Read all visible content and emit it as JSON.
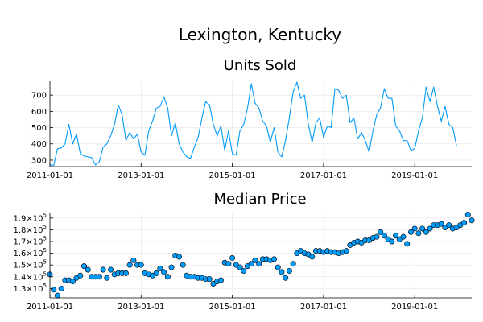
{
  "title": "Lexington, Kentucky",
  "chart_data": [
    {
      "type": "line",
      "title": "Units Sold",
      "xlabel": "",
      "ylabel": "",
      "color": "#009af9",
      "xticks": [
        "2011-01-01",
        "2013-01-01",
        "2015-01-01",
        "2017-01-01",
        "2019-01-01"
      ],
      "yticks": [
        "300",
        "400",
        "500",
        "600",
        "700"
      ],
      "ylim": [
        260,
        790
      ],
      "xlim": [
        "2011-01-01",
        "2020-04-01"
      ],
      "grid": true,
      "x_start": "2011-01-01",
      "x_step": "monthly",
      "values": [
        270,
        268,
        370,
        375,
        400,
        520,
        400,
        460,
        340,
        325,
        320,
        315,
        270,
        290,
        380,
        400,
        450,
        520,
        640,
        580,
        420,
        470,
        430,
        460,
        350,
        330,
        480,
        540,
        620,
        630,
        690,
        620,
        450,
        530,
        400,
        350,
        320,
        310,
        380,
        440,
        560,
        660,
        640,
        520,
        450,
        510,
        360,
        480,
        340,
        330,
        480,
        520,
        620,
        770,
        650,
        620,
        540,
        510,
        410,
        500,
        350,
        320,
        420,
        560,
        720,
        780,
        680,
        700,
        520,
        410,
        530,
        560,
        440,
        510,
        500,
        740,
        730,
        680,
        700,
        530,
        560,
        430,
        470,
        420,
        350,
        480,
        580,
        620,
        740,
        680,
        680,
        510,
        480,
        420,
        420,
        360,
        370,
        480,
        560,
        750,
        660,
        750,
        630,
        540,
        630,
        520,
        500,
        390
      ]
    },
    {
      "type": "scatter",
      "title": "Median Price",
      "xlabel": "",
      "ylabel": "",
      "color": "#009af9",
      "xticks": [
        "2011-01-01",
        "2013-01-01",
        "2015-01-01",
        "2017-01-01",
        "2019-01-01"
      ],
      "yticks": [
        {
          "base": "1.3×10",
          "exp": "5"
        },
        {
          "base": "1.4×10",
          "exp": "5"
        },
        {
          "base": "1.5×10",
          "exp": "5"
        },
        {
          "base": "1.6×10",
          "exp": "5"
        },
        {
          "base": "1.7×10",
          "exp": "5"
        },
        {
          "base": "1.8×10",
          "exp": "5"
        },
        {
          "base": "1.9×10",
          "exp": "5"
        }
      ],
      "ylim": [
        122000,
        194000
      ],
      "xlim": [
        "2011-01-01",
        "2020-04-01"
      ],
      "grid": true,
      "x_start": "2011-01-01",
      "x_step": "monthly",
      "values": [
        142000,
        129000,
        124000,
        130000,
        137000,
        137000,
        136000,
        139000,
        141000,
        149000,
        146000,
        140000,
        140000,
        140000,
        146000,
        139000,
        146000,
        142000,
        143000,
        143000,
        143000,
        150000,
        154000,
        150000,
        150000,
        143000,
        142000,
        141000,
        143000,
        147000,
        144000,
        140000,
        148000,
        158000,
        157000,
        150000,
        141000,
        140000,
        140000,
        139000,
        139000,
        138000,
        138000,
        134000,
        136000,
        137000,
        152000,
        151000,
        156000,
        150000,
        148000,
        145000,
        149000,
        151000,
        154000,
        151000,
        155000,
        155000,
        154000,
        155000,
        148000,
        144000,
        139000,
        145000,
        151000,
        160000,
        162000,
        160000,
        159000,
        157000,
        162000,
        162000,
        161000,
        162000,
        161000,
        161000,
        160000,
        161000,
        162000,
        167000,
        169000,
        170000,
        169000,
        171000,
        171000,
        173000,
        174000,
        178000,
        175000,
        172000,
        170000,
        175000,
        172000,
        174000,
        168000,
        178000,
        181000,
        177000,
        181000,
        178000,
        181000,
        184000,
        184000,
        185000,
        182000,
        184000,
        181000,
        182000,
        184000,
        186000,
        193000,
        188000
      ]
    }
  ]
}
